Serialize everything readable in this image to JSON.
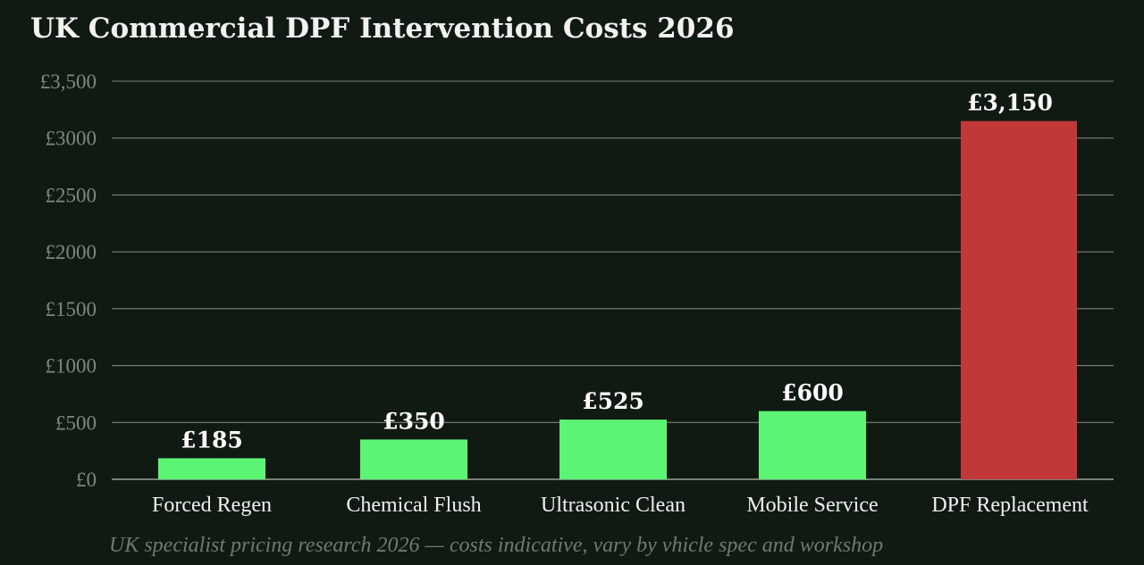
{
  "chart_data": {
    "type": "bar",
    "title": "UK Commercial DPF Intervention Costs 2026",
    "caption": "UK specialist pricing research 2026 — costs indicative, vary by vhicle spec and workshop",
    "xlabel": "",
    "ylabel": "",
    "ylim": [
      0,
      3500
    ],
    "grid": true,
    "y_ticks": [
      {
        "value": 0,
        "label": "£0"
      },
      {
        "value": 500,
        "label": "£500"
      },
      {
        "value": 1000,
        "label": "£1000"
      },
      {
        "value": 1500,
        "label": "£1500"
      },
      {
        "value": 2000,
        "label": "£2000"
      },
      {
        "value": 2500,
        "label": "£2500"
      },
      {
        "value": 3000,
        "label": "£3000"
      },
      {
        "value": 3500,
        "label": "£3,500"
      }
    ],
    "categories": [
      "Forced Regen",
      "Chemical Flush",
      "Ultrasonic Clean",
      "Mobile Service",
      "DPF Replacement"
    ],
    "values": [
      185,
      350,
      525,
      600,
      3150
    ],
    "value_labels": [
      "£185",
      "£350",
      "£525",
      "£600",
      "£3,150"
    ],
    "bar_colors": [
      "#5cf474",
      "#5cf474",
      "#5cf474",
      "#5cf474",
      "#c23838"
    ]
  }
}
